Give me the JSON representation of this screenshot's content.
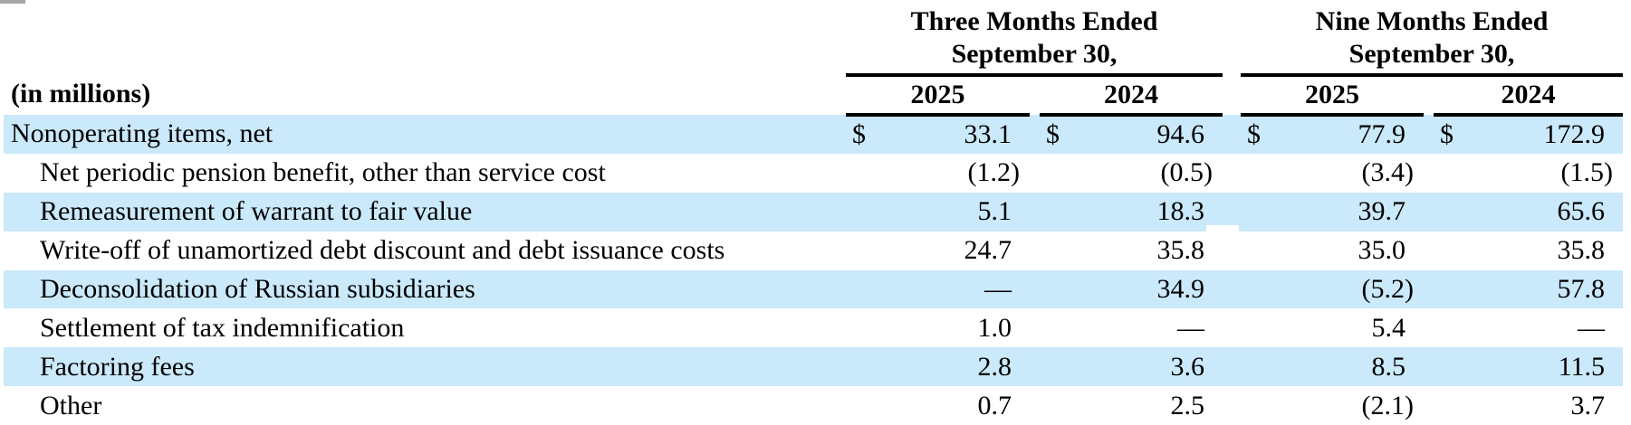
{
  "colors": {
    "row_highlight": "#cae9fa",
    "rule": "#000000",
    "corner_mark": "#a6a6a6"
  },
  "header": {
    "units_label": "(in millions)",
    "groups": [
      {
        "line1": "Three Months Ended",
        "line2": "September 30,"
      },
      {
        "line1": "Nine Months Ended",
        "line2": "September 30,"
      }
    ],
    "years": [
      "2025",
      "2024",
      "2025",
      "2024"
    ]
  },
  "table": {
    "currency_symbol": "$",
    "rows": [
      {
        "label": "Nonoperating items, net",
        "indent": false,
        "highlight": true,
        "show_currency": true,
        "values": [
          "33.1",
          "94.6",
          "77.9",
          "172.9"
        ]
      },
      {
        "label": "Net periodic pension benefit, other than service cost",
        "indent": true,
        "highlight": false,
        "show_currency": false,
        "values": [
          "(1.2)",
          "(0.5)",
          "(3.4)",
          "(1.5)"
        ]
      },
      {
        "label": "Remeasurement of warrant to fair value",
        "indent": true,
        "highlight": true,
        "show_currency": false,
        "values": [
          "5.1",
          "18.3",
          "39.7",
          "65.6"
        ]
      },
      {
        "label": "Write-off of unamortized debt discount and debt issuance costs",
        "indent": true,
        "highlight": false,
        "show_currency": false,
        "values": [
          "24.7",
          "35.8",
          "35.0",
          "35.8"
        ]
      },
      {
        "label": "Deconsolidation of Russian subsidiaries",
        "indent": true,
        "highlight": true,
        "show_currency": false,
        "values": [
          "—",
          "34.9",
          "(5.2)",
          "57.8"
        ]
      },
      {
        "label": "Settlement of tax indemnification",
        "indent": true,
        "highlight": false,
        "show_currency": false,
        "values": [
          "1.0",
          "—",
          "5.4",
          "—"
        ]
      },
      {
        "label": "Factoring fees",
        "indent": true,
        "highlight": true,
        "show_currency": false,
        "values": [
          "2.8",
          "3.6",
          "8.5",
          "11.5"
        ]
      },
      {
        "label": "Other",
        "indent": true,
        "highlight": false,
        "show_currency": false,
        "values": [
          "0.7",
          "2.5",
          "(2.1)",
          "3.7"
        ]
      }
    ]
  }
}
